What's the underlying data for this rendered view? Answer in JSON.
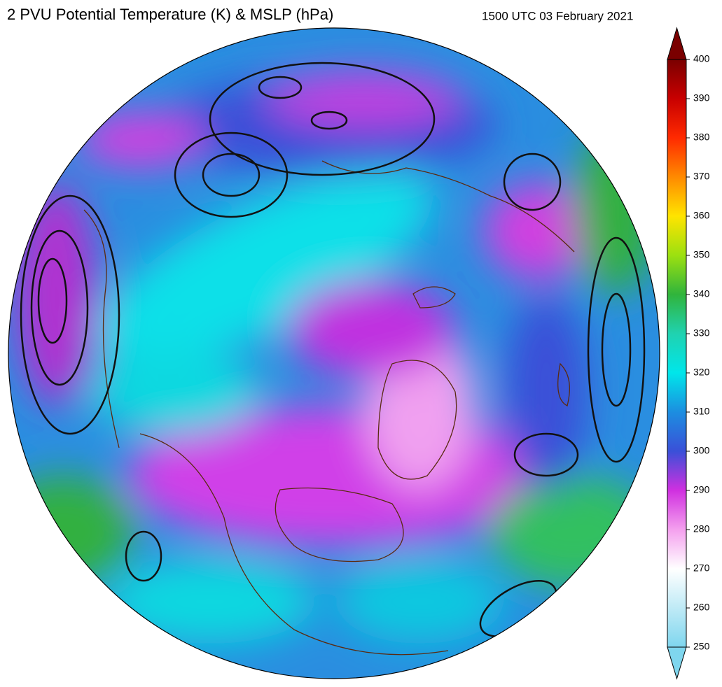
{
  "header": {
    "title": "2 PVU Potential Temperature (K) & MSLP (hPa)",
    "valid_time": "1500 UTC 03 February 2021"
  },
  "colorbar": {
    "lim": [
      250,
      400
    ],
    "extend": "both",
    "ticks": [
      250,
      260,
      270,
      280,
      290,
      300,
      310,
      320,
      330,
      340,
      350,
      360,
      370,
      380,
      390,
      400
    ],
    "colors": [
      "#7fd6ee",
      "#bfeaf6",
      "#ffffff",
      "#f4a0ee",
      "#d030e0",
      "#3a50d8",
      "#1c8ee0",
      "#00e6ea",
      "#20d2b0",
      "#30b43c",
      "#9ce010",
      "#ffe400",
      "#ff8a00",
      "#ff2a00",
      "#c80000",
      "#7a0000"
    ]
  }
}
